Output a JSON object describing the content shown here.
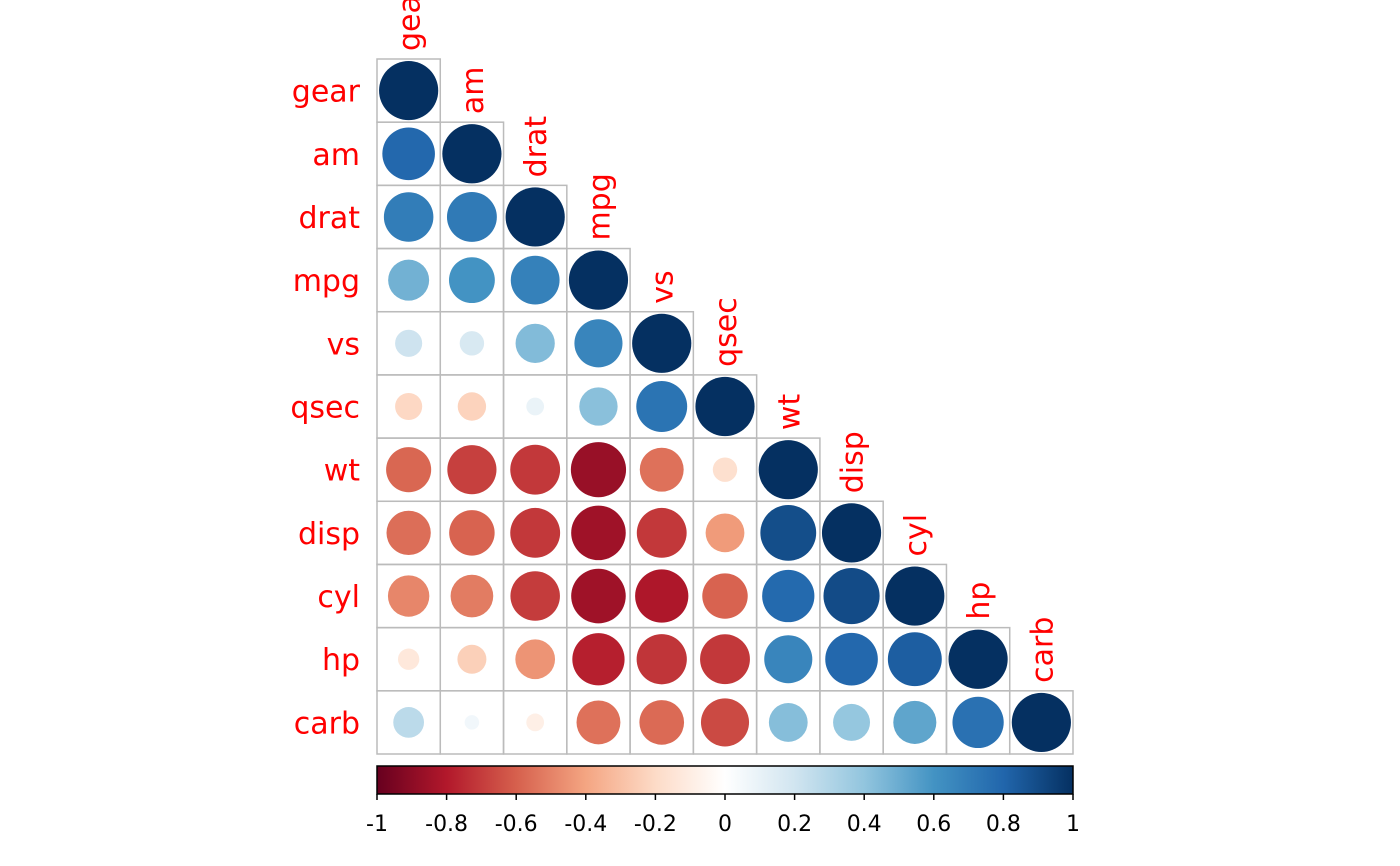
{
  "chart_data": {
    "type": "corrplot",
    "variables": [
      "gear",
      "am",
      "drat",
      "mpg",
      "vs",
      "qsec",
      "wt",
      "disp",
      "cyl",
      "hp",
      "carb"
    ],
    "matrix": [
      [
        1
      ],
      [
        0.79,
        1
      ],
      [
        0.7,
        0.71,
        1
      ],
      [
        0.48,
        0.6,
        0.68,
        1
      ],
      [
        0.21,
        0.17,
        0.44,
        0.66,
        1
      ],
      [
        -0.21,
        -0.23,
        0.09,
        0.42,
        0.74,
        1
      ],
      [
        -0.58,
        -0.69,
        -0.71,
        -0.87,
        -0.55,
        -0.17,
        1
      ],
      [
        -0.56,
        -0.59,
        -0.71,
        -0.85,
        -0.71,
        -0.43,
        0.89,
        1
      ],
      [
        -0.49,
        -0.52,
        -0.7,
        -0.85,
        -0.81,
        -0.59,
        0.78,
        0.9,
        1
      ],
      [
        -0.13,
        -0.24,
        -0.45,
        -0.78,
        -0.72,
        -0.71,
        0.66,
        0.79,
        0.83,
        1
      ],
      [
        0.27,
        0.06,
        -0.09,
        -0.55,
        -0.57,
        -0.66,
        0.43,
        0.39,
        0.53,
        0.75,
        1
      ]
    ],
    "colors": [
      "#67001F",
      "#B2182B",
      "#D6604D",
      "#F4A582",
      "#FDDBC7",
      "#FFFFFF",
      "#D1E5F0",
      "#92C5DE",
      "#4393C3",
      "#2166AC",
      "#053061"
    ],
    "label_color": "#FF0000",
    "colorbar_lim": [
      -1,
      1
    ],
    "colorbar_ticks": [
      -1,
      -0.8,
      -0.6,
      -0.4,
      -0.2,
      0,
      0.2,
      0.4,
      0.6,
      0.8,
      1
    ]
  }
}
